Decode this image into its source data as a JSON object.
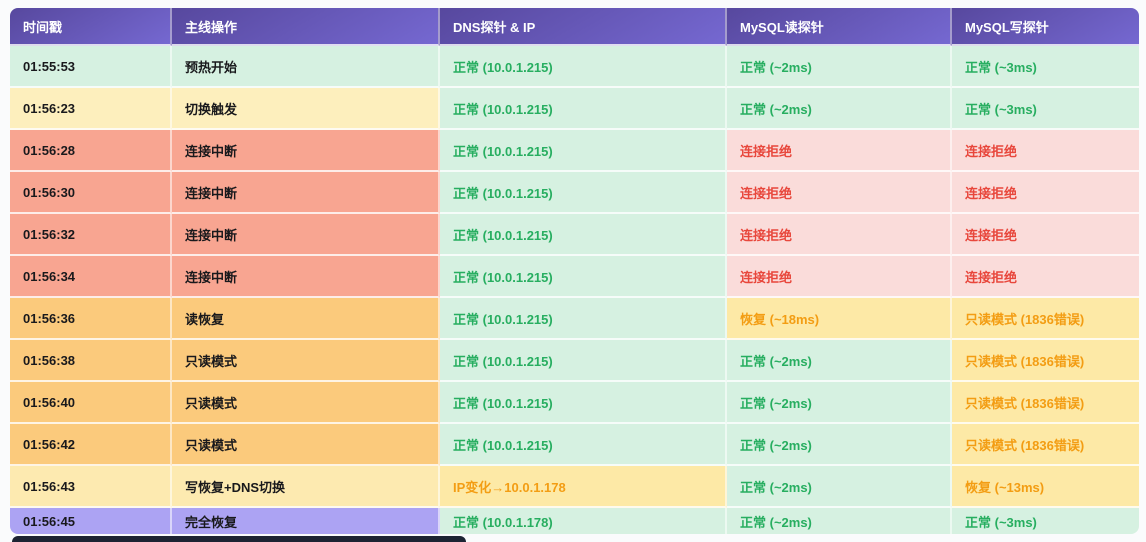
{
  "colors": {
    "header_gradient_start": "#57489e",
    "header_gradient_end": "#7568d1",
    "header_text": "#ffffff",
    "green_bg": "#d6f1e1",
    "yellow_bg": "#fdefbd",
    "salmon_bg": "#f8a591",
    "pink_bg": "#fadcda",
    "orange_bg": "#fbca7c",
    "amber_bg": "#fde9a6",
    "amber2_bg": "#fdeab0",
    "purple_bg": "#aca3f3",
    "green_text": "#27ae60",
    "red_text": "#e8473c",
    "orange_text": "#f39d13",
    "dark_text": "#19191c",
    "page_bg": "#fafbfc",
    "bottom_strip": "#1d2333"
  },
  "table": {
    "headers": [
      {
        "label": "时间戳"
      },
      {
        "label": "主线操作"
      },
      {
        "label": "DNS探针 & IP"
      },
      {
        "label": "MySQL读探针"
      },
      {
        "label": "MySQL写探针"
      }
    ],
    "rows": [
      {
        "time": "01:55:53",
        "op": "预热开始",
        "bg": "green",
        "cells": [
          {
            "text": "正常 (10.0.1.215)",
            "bg": "green",
            "fg": "green"
          },
          {
            "text": "正常 (~2ms)",
            "bg": "green",
            "fg": "green"
          },
          {
            "text": "正常 (~3ms)",
            "bg": "green",
            "fg": "green"
          }
        ]
      },
      {
        "time": "01:56:23",
        "op": "切换触发",
        "bg": "yellow",
        "cells": [
          {
            "text": "正常 (10.0.1.215)",
            "bg": "green",
            "fg": "green"
          },
          {
            "text": "正常 (~2ms)",
            "bg": "green",
            "fg": "green"
          },
          {
            "text": "正常 (~3ms)",
            "bg": "green",
            "fg": "green"
          }
        ]
      },
      {
        "time": "01:56:28",
        "op": "连接中断",
        "bg": "salmon",
        "cells": [
          {
            "text": "正常 (10.0.1.215)",
            "bg": "green",
            "fg": "green"
          },
          {
            "text": "连接拒绝",
            "bg": "pink",
            "fg": "red"
          },
          {
            "text": "连接拒绝",
            "bg": "pink",
            "fg": "red"
          }
        ]
      },
      {
        "time": "01:56:30",
        "op": "连接中断",
        "bg": "salmon",
        "cells": [
          {
            "text": "正常 (10.0.1.215)",
            "bg": "green",
            "fg": "green"
          },
          {
            "text": "连接拒绝",
            "bg": "pink",
            "fg": "red"
          },
          {
            "text": "连接拒绝",
            "bg": "pink",
            "fg": "red"
          }
        ]
      },
      {
        "time": "01:56:32",
        "op": "连接中断",
        "bg": "salmon",
        "cells": [
          {
            "text": "正常 (10.0.1.215)",
            "bg": "green",
            "fg": "green"
          },
          {
            "text": "连接拒绝",
            "bg": "pink",
            "fg": "red"
          },
          {
            "text": "连接拒绝",
            "bg": "pink",
            "fg": "red"
          }
        ]
      },
      {
        "time": "01:56:34",
        "op": "连接中断",
        "bg": "salmon",
        "cells": [
          {
            "text": "正常 (10.0.1.215)",
            "bg": "green",
            "fg": "green"
          },
          {
            "text": "连接拒绝",
            "bg": "pink",
            "fg": "red"
          },
          {
            "text": "连接拒绝",
            "bg": "pink",
            "fg": "red"
          }
        ]
      },
      {
        "time": "01:56:36",
        "op": "读恢复",
        "bg": "orange",
        "cells": [
          {
            "text": "正常 (10.0.1.215)",
            "bg": "green",
            "fg": "green"
          },
          {
            "text": "恢复 (~18ms)",
            "bg": "amber",
            "fg": "orange"
          },
          {
            "text": "只读模式 (1836错误)",
            "bg": "amber",
            "fg": "orange"
          }
        ]
      },
      {
        "time": "01:56:38",
        "op": "只读模式",
        "bg": "orange",
        "cells": [
          {
            "text": "正常 (10.0.1.215)",
            "bg": "green",
            "fg": "green"
          },
          {
            "text": "正常 (~2ms)",
            "bg": "green",
            "fg": "green"
          },
          {
            "text": "只读模式 (1836错误)",
            "bg": "amber",
            "fg": "orange"
          }
        ]
      },
      {
        "time": "01:56:40",
        "op": "只读模式",
        "bg": "orange",
        "cells": [
          {
            "text": "正常 (10.0.1.215)",
            "bg": "green",
            "fg": "green"
          },
          {
            "text": "正常 (~2ms)",
            "bg": "green",
            "fg": "green"
          },
          {
            "text": "只读模式 (1836错误)",
            "bg": "amber",
            "fg": "orange"
          }
        ]
      },
      {
        "time": "01:56:42",
        "op": "只读模式",
        "bg": "orange",
        "cells": [
          {
            "text": "正常 (10.0.1.215)",
            "bg": "green",
            "fg": "green"
          },
          {
            "text": "正常 (~2ms)",
            "bg": "green",
            "fg": "green"
          },
          {
            "text": "只读模式 (1836错误)",
            "bg": "amber",
            "fg": "orange"
          }
        ]
      },
      {
        "time": "01:56:43",
        "op": "写恢复+DNS切换",
        "bg": "amber2",
        "cells": [
          {
            "text": "IP变化→10.0.1.178",
            "bg": "amber",
            "fg": "orange"
          },
          {
            "text": "正常 (~2ms)",
            "bg": "green",
            "fg": "green"
          },
          {
            "text": "恢复 (~13ms)",
            "bg": "amber",
            "fg": "orange"
          }
        ]
      },
      {
        "time": "01:56:45",
        "op": "完全恢复",
        "bg": "purple",
        "cells": [
          {
            "text": "正常 (10.0.1.178)",
            "bg": "green",
            "fg": "green"
          },
          {
            "text": "正常 (~2ms)",
            "bg": "green",
            "fg": "green"
          },
          {
            "text": "正常 (~3ms)",
            "bg": "green",
            "fg": "green"
          }
        ]
      }
    ]
  }
}
